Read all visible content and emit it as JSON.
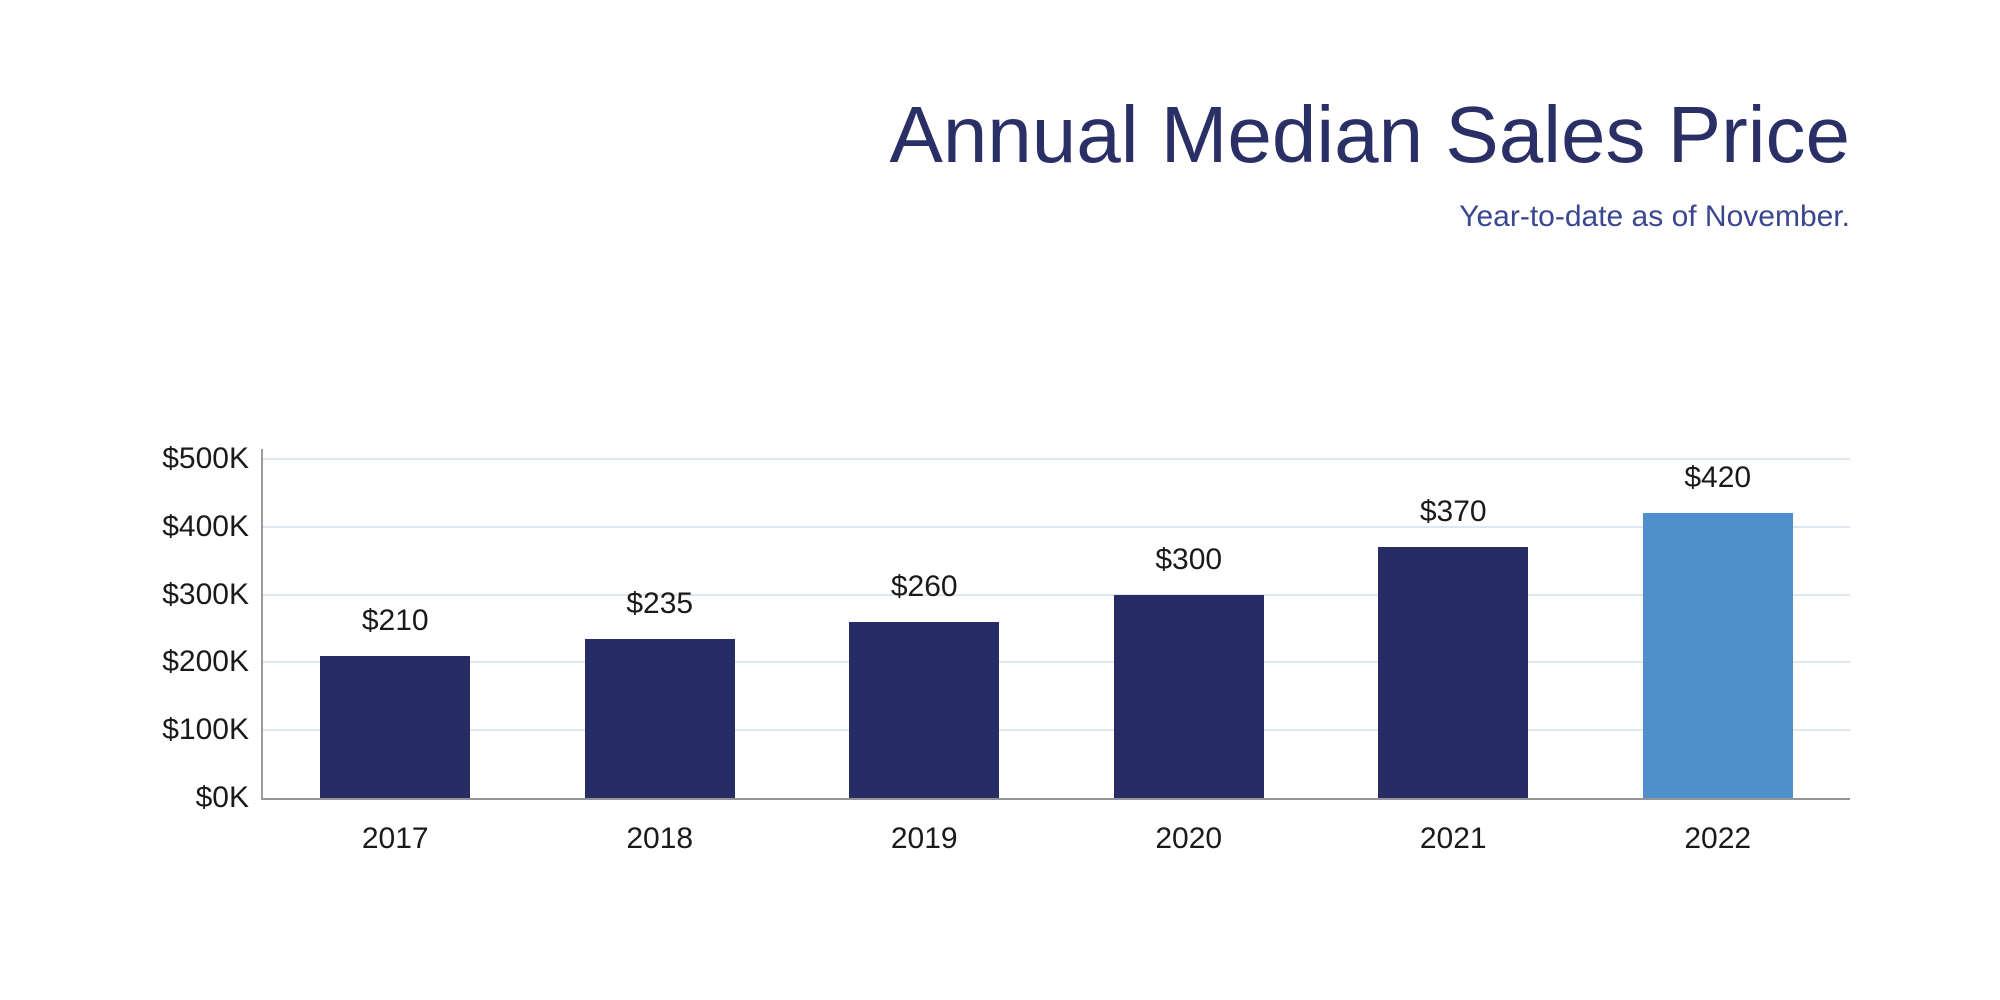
{
  "header": {
    "title": "Annual Median Sales Price",
    "subtitle": "Year-to-date as of November."
  },
  "colors": {
    "title_text": "#2a3066",
    "subtitle_text": "#3a4690",
    "bar_default": "#272d64",
    "bar_highlight": "#4f8fcc",
    "gridline": "#e0e7f2",
    "axis_line": "#9a9ca0",
    "label_text": "#1a1a1a"
  },
  "chart_data": {
    "type": "bar",
    "title": "Annual Median Sales Price",
    "subtitle": "Year-to-date as of November.",
    "categories": [
      "2017",
      "2018",
      "2019",
      "2020",
      "2021",
      "2022"
    ],
    "values": [
      210,
      235,
      260,
      300,
      370,
      420
    ],
    "value_labels": [
      "$210",
      "$235",
      "$260",
      "$300",
      "$370",
      "$420"
    ],
    "ylim": [
      0,
      500
    ],
    "ytick_step": 100,
    "ytick_labels": [
      "$0K",
      "$100K",
      "$200K",
      "$300K",
      "$400K",
      "$500K"
    ],
    "xlabel": "",
    "ylabel": "",
    "grid": true,
    "legend": false,
    "highlight_category": "2022"
  }
}
